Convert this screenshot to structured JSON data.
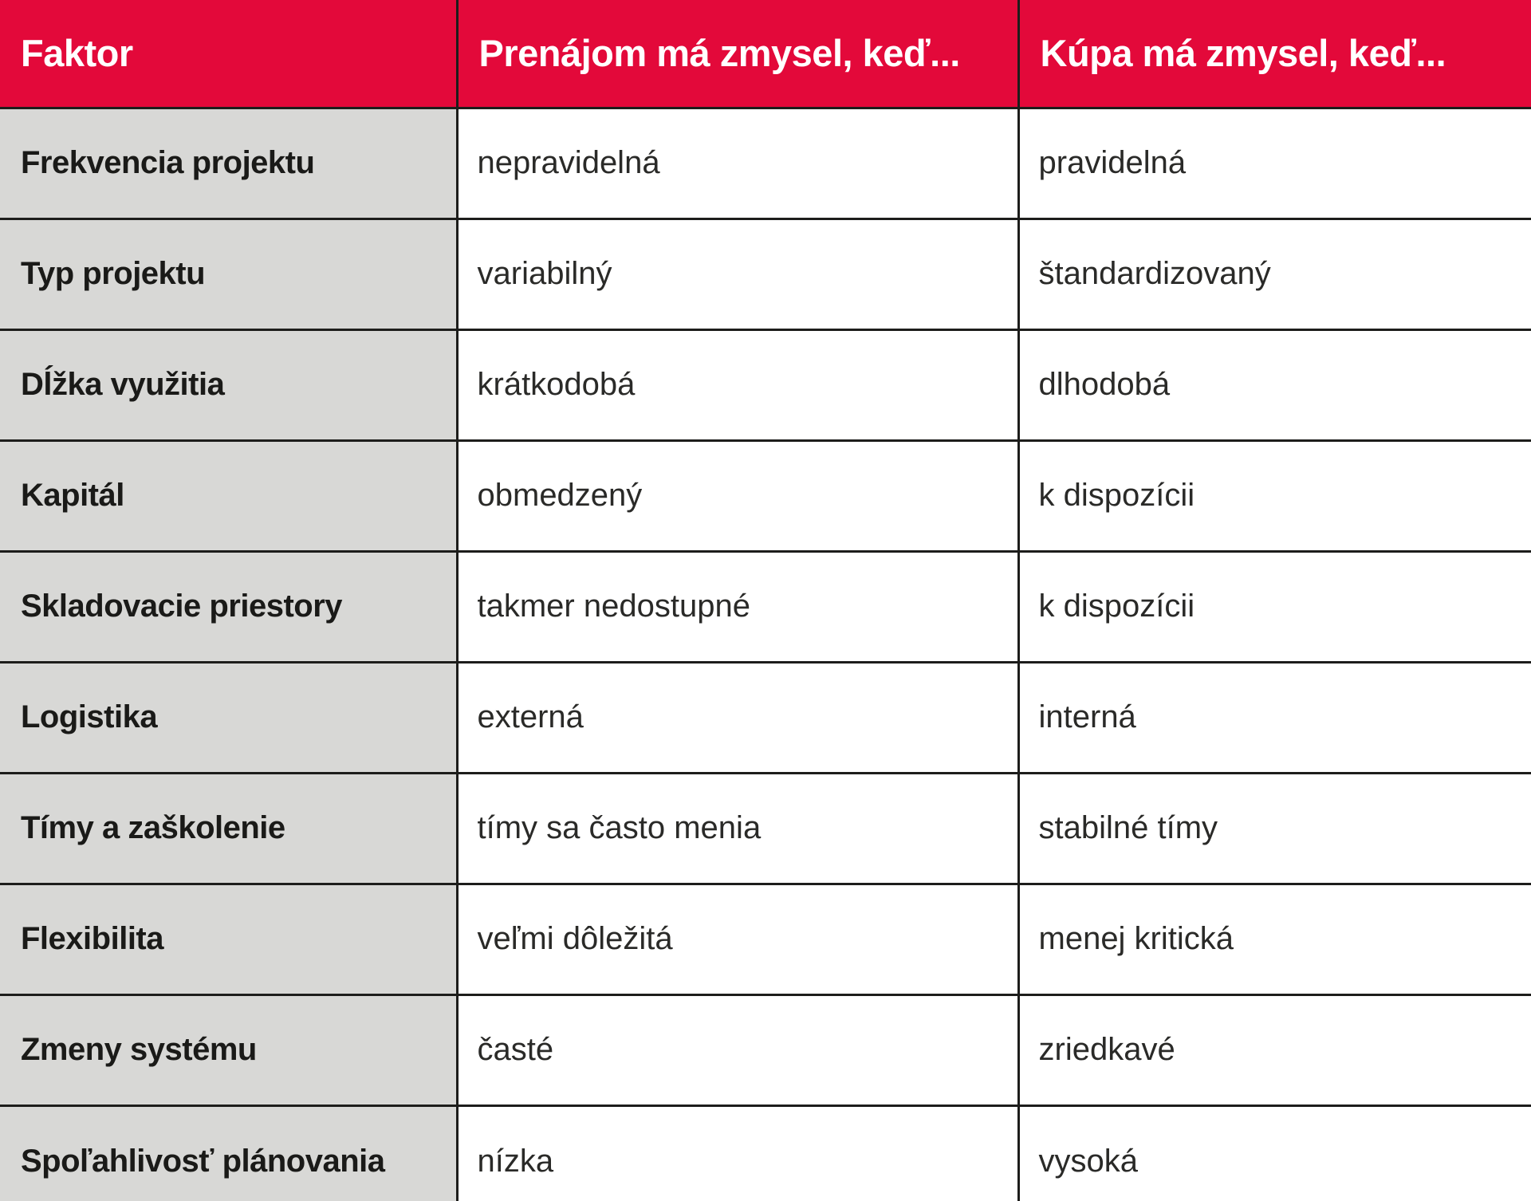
{
  "colors": {
    "header_bg": "#e3093a",
    "row_header_bg": "#d8d8d6",
    "border": "#1d1d1b",
    "header_text": "#ffffff",
    "body_text": "#1d1d1b"
  },
  "table": {
    "columns": [
      {
        "label": "Faktor"
      },
      {
        "label": "Prenájom má zmysel, keď..."
      },
      {
        "label": "Kúpa má zmysel, keď..."
      }
    ],
    "rows": [
      {
        "faktor": "Frekvencia projektu",
        "prenajom": "nepravidelná",
        "kupa": "pravidelná"
      },
      {
        "faktor": "Typ projektu",
        "prenajom": "variabilný",
        "kupa": "štandardizovaný"
      },
      {
        "faktor": "Dĺžka využitia",
        "prenajom": "krátkodobá",
        "kupa": "dlhodobá"
      },
      {
        "faktor": "Kapitál",
        "prenajom": "obmedzený",
        "kupa": "k dispozícii"
      },
      {
        "faktor": "Skladovacie priestory",
        "prenajom": "takmer nedostupné",
        "kupa": "k dispozícii"
      },
      {
        "faktor": "Logistika",
        "prenajom": "externá",
        "kupa": "interná"
      },
      {
        "faktor": "Tímy a zaškolenie",
        "prenajom": "tímy sa často menia",
        "kupa": "stabilné tímy"
      },
      {
        "faktor": "Flexibilita",
        "prenajom": "veľmi dôležitá",
        "kupa": "menej kritická"
      },
      {
        "faktor": "Zmeny systému",
        "prenajom": "časté",
        "kupa": "zriedkavé"
      },
      {
        "faktor": "Spoľahlivosť plánovania",
        "prenajom": "nízka",
        "kupa": "vysoká"
      }
    ]
  }
}
